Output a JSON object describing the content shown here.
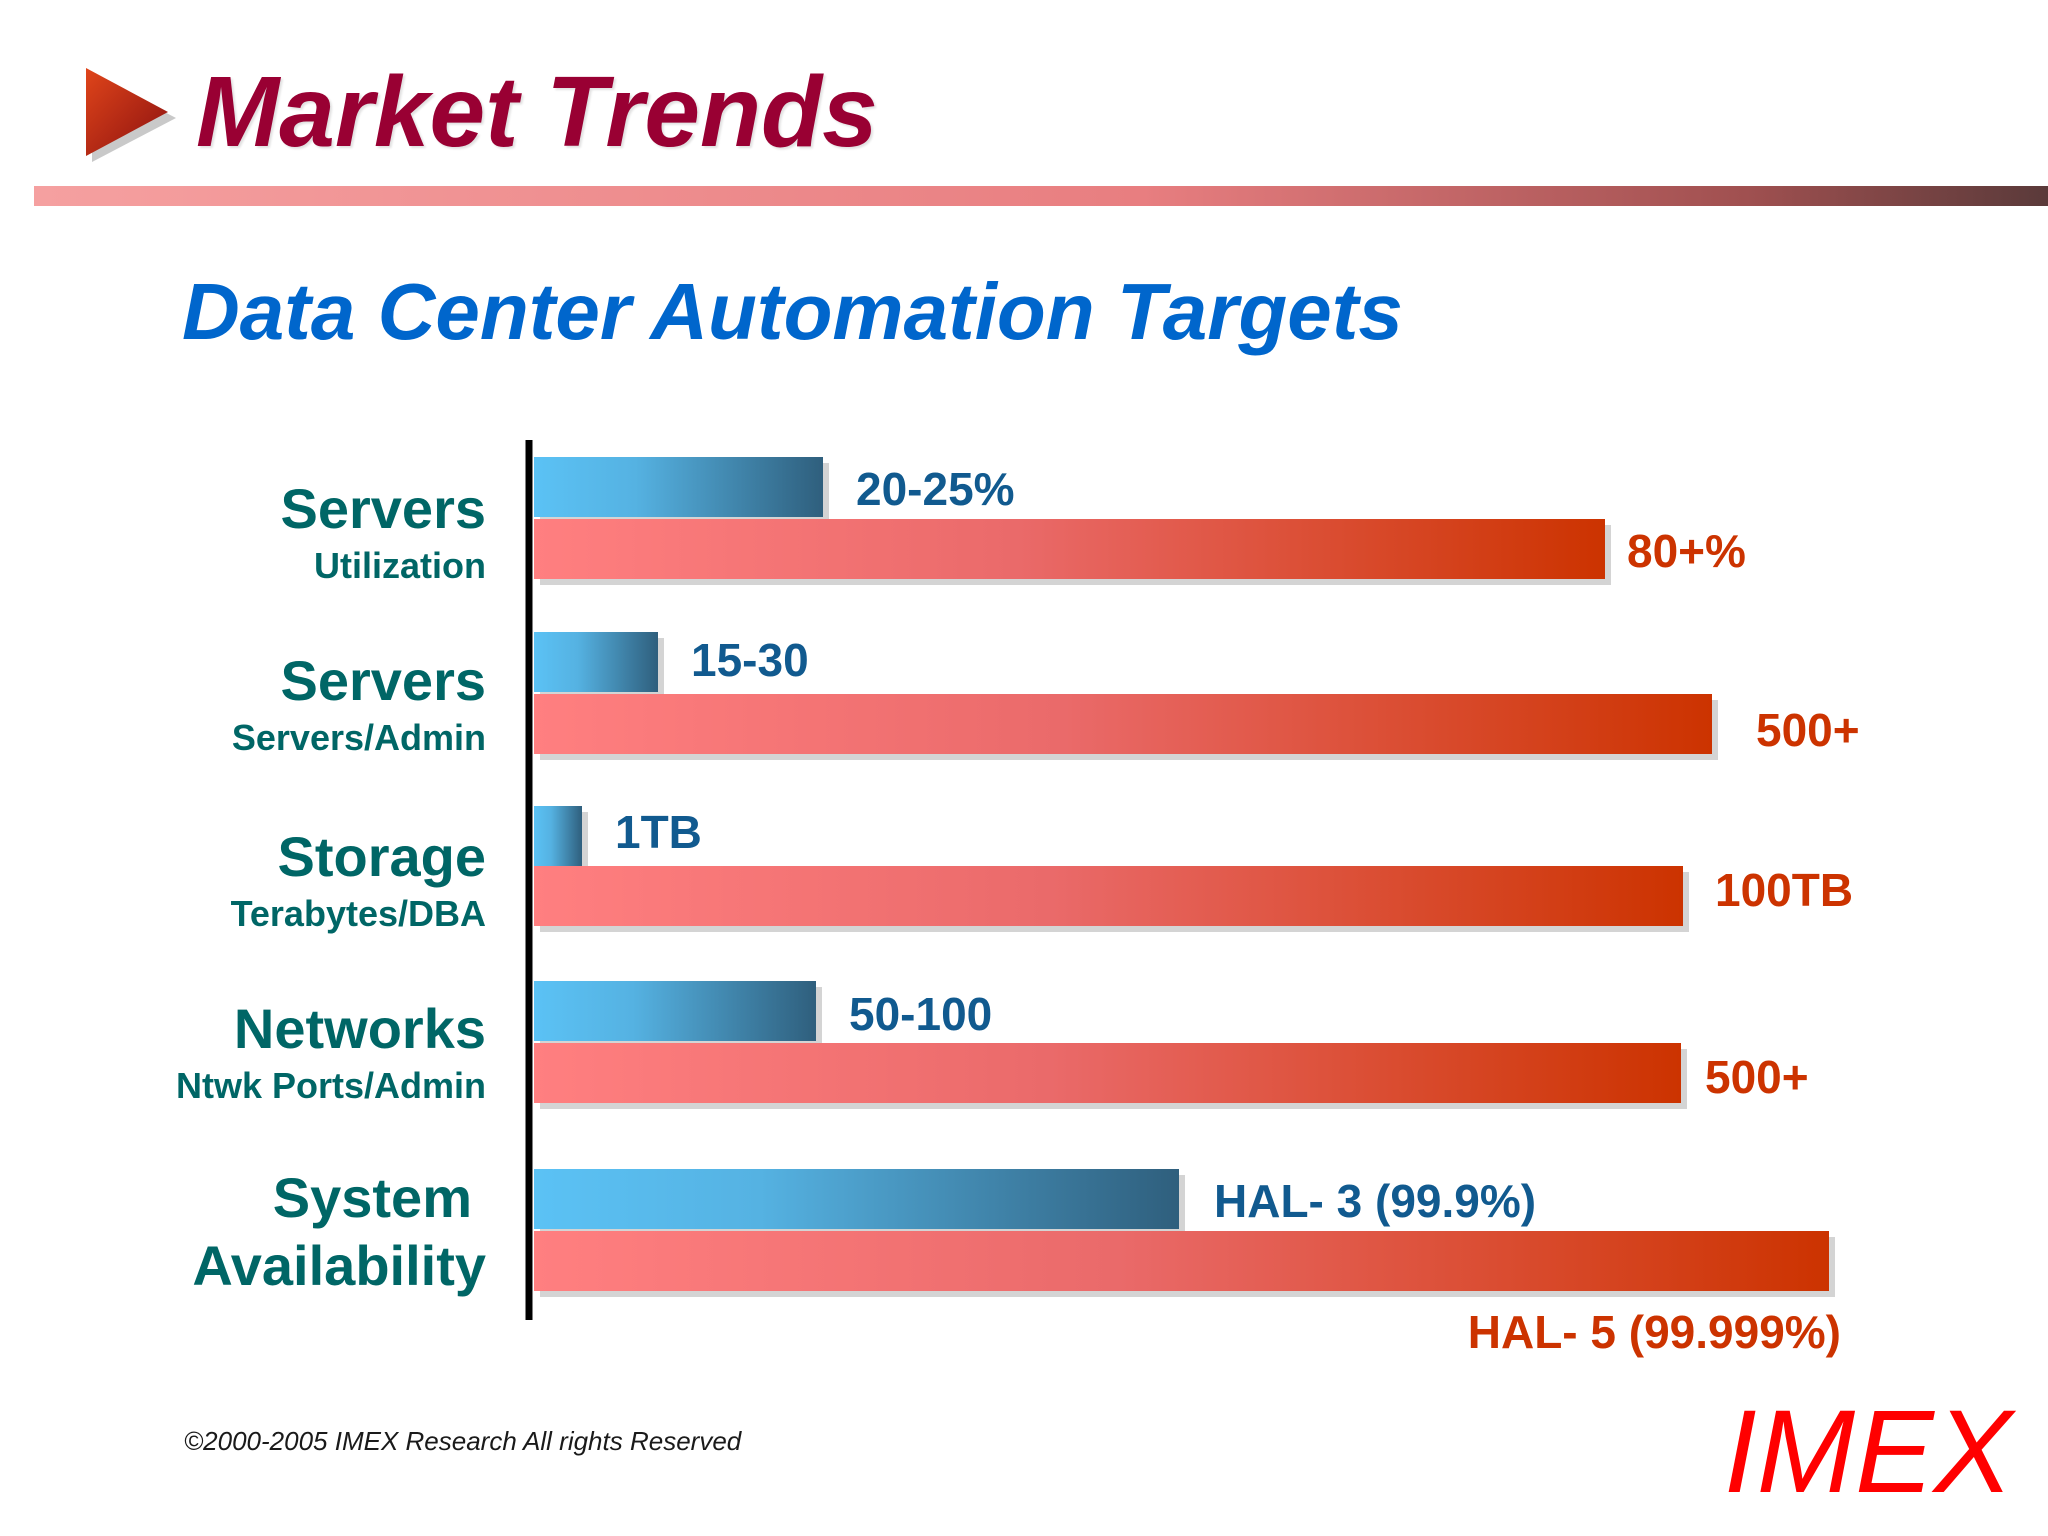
{
  "header": {
    "title": "Market Trends",
    "subtitle": "Data Center Automation Targets"
  },
  "chart_data": {
    "type": "bar",
    "orientation": "horizontal",
    "quantitative_scale": false,
    "title": "Data Center Automation Targets",
    "categories": [
      {
        "name": "Servers",
        "sub": "Utilization"
      },
      {
        "name": "Servers",
        "sub": "Servers/Admin"
      },
      {
        "name": "Storage",
        "sub": "Terabytes/DBA"
      },
      {
        "name": "Networks",
        "sub": "Ntwk Ports/Admin"
      },
      {
        "name": "System",
        "sub": "Availability"
      }
    ],
    "series": [
      {
        "color": "#5bc2f5",
        "values": [
          0.271,
          0.116,
          0.045,
          0.264,
          0.604
        ],
        "labels": [
          "20-25%",
          "15-30",
          "1TB",
          "50-100",
          "HAL- 3 (99.9%)"
        ]
      },
      {
        "color": "#cc3300",
        "values": [
          1.003,
          1.103,
          1.076,
          1.074,
          1.213
        ],
        "labels": [
          "80+%",
          "500+",
          "100TB",
          "500+",
          "HAL- 5 (99.999%)"
        ]
      }
    ],
    "bar_fill": "relative length as drawn; no numeric axis printed",
    "colors": {
      "current_gradient": [
        "#5bc2f5",
        "#2f5f7d"
      ],
      "target_gradient": [
        "#ff7f80",
        "#cc3300"
      ],
      "category_text": "#006666",
      "current_label": "#115a8f",
      "target_label": "#cc3300"
    }
  },
  "footer": {
    "copyright": "©2000-2005  IMEX Research All rights Reserved",
    "logo": "IMEX"
  }
}
